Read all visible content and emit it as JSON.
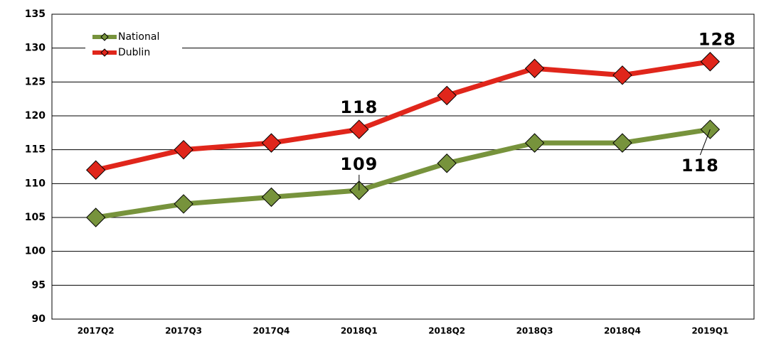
{
  "chart_data": {
    "type": "line",
    "categories": [
      "2017Q2",
      "2017Q3",
      "2017Q4",
      "2018Q1",
      "2018Q2",
      "2018Q3",
      "2018Q4",
      "2019Q1"
    ],
    "series": [
      {
        "name": "National",
        "color": "#77933c",
        "values": [
          105,
          107,
          108,
          109,
          113,
          116,
          116,
          118
        ],
        "labeled_points": [
          3,
          7
        ]
      },
      {
        "name": "Dublin",
        "color": "#e0261b",
        "values": [
          112,
          115,
          116,
          118,
          123,
          127,
          126,
          128
        ],
        "labeled_points": [
          3,
          7
        ]
      }
    ],
    "ylim": [
      90,
      135
    ],
    "yticks": [
      90,
      95,
      100,
      105,
      110,
      115,
      120,
      125,
      130,
      135
    ],
    "grid": true,
    "legend": "top-left"
  }
}
